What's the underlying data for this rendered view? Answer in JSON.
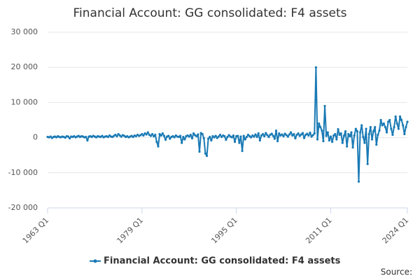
{
  "chart_data": {
    "type": "line",
    "title": "Financial Account: GG consolidated: F4 assets",
    "source_label": "Source:",
    "categories": [
      "1963 Q1",
      null,
      null,
      null,
      null,
      null,
      null,
      null,
      null,
      null,
      null,
      null,
      null,
      null,
      null,
      null,
      null,
      null,
      null,
      null,
      null,
      null,
      null,
      null,
      null,
      null,
      null,
      null,
      null,
      null,
      null,
      null,
      null,
      null,
      null,
      null,
      null,
      null,
      null,
      null,
      null,
      null,
      null,
      null,
      null,
      null,
      null,
      null,
      null,
      null,
      null,
      null,
      null,
      null,
      null,
      null,
      null,
      null,
      null,
      null,
      null,
      null,
      null,
      null,
      "1979 Q1",
      null,
      null,
      null,
      null,
      null,
      null,
      null,
      null,
      null,
      null,
      null,
      null,
      null,
      null,
      null,
      null,
      null,
      null,
      null,
      null,
      null,
      null,
      null,
      null,
      null,
      null,
      null,
      null,
      null,
      null,
      null,
      null,
      null,
      null,
      null,
      null,
      null,
      null,
      null,
      null,
      null,
      null,
      null,
      null,
      null,
      null,
      null,
      null,
      null,
      null,
      null,
      null,
      null,
      null,
      null,
      null,
      null,
      null,
      null,
      null,
      null,
      null,
      null,
      "1995 Q1",
      null,
      null,
      null,
      null,
      null,
      null,
      null,
      null,
      null,
      null,
      null,
      null,
      null,
      null,
      null,
      null,
      null,
      null,
      null,
      null,
      null,
      null,
      null,
      null,
      null,
      null,
      null,
      null,
      null,
      null,
      null,
      null,
      null,
      null,
      null,
      null,
      null,
      null,
      null,
      null,
      null,
      null,
      null,
      null,
      null,
      null,
      null,
      null,
      null,
      null,
      null,
      null,
      null,
      null,
      null,
      null,
      null,
      null,
      null,
      null,
      null,
      null,
      null,
      "2011 Q1",
      null,
      null,
      null,
      null,
      null,
      null,
      null,
      null,
      null,
      null,
      null,
      null,
      null,
      null,
      null,
      null,
      null,
      null,
      null,
      null,
      null,
      null,
      null,
      null,
      null,
      null,
      null,
      null,
      null,
      null,
      null,
      null,
      null,
      null,
      null,
      null,
      null,
      null,
      null,
      null,
      null,
      null,
      null,
      null,
      null,
      null,
      null,
      null,
      null,
      null,
      null,
      "2024 Q1"
    ],
    "series": [
      {
        "name": "Financial Account: GG consolidated: F4 assets",
        "color": "#1a7ab5",
        "values": [
          200,
          100,
          300,
          -100,
          200,
          300,
          100,
          400,
          200,
          100,
          300,
          200,
          0,
          400,
          300,
          -200,
          300,
          200,
          400,
          100,
          300,
          500,
          200,
          400,
          300,
          100,
          200,
          -800,
          300,
          400,
          200,
          500,
          300,
          100,
          400,
          300,
          200,
          500,
          100,
          300,
          400,
          200,
          600,
          300,
          200,
          500,
          800,
          400,
          1000,
          600,
          300,
          700,
          500,
          200,
          400,
          100,
          300,
          500,
          200,
          600,
          400,
          800,
          500,
          700,
          1000,
          600,
          1200,
          900,
          1500,
          800,
          500,
          1000,
          400,
          800,
          -1200,
          -2500,
          1000,
          600,
          1200,
          500,
          -600,
          300,
          500,
          -300,
          200,
          400,
          100,
          600,
          300,
          200,
          500,
          -1500,
          200,
          -500,
          400,
          600,
          300,
          800,
          -200,
          1200,
          700,
          400,
          900,
          -4000,
          1300,
          1000,
          -200,
          -4500,
          -5200,
          -300,
          200,
          -800,
          400,
          100,
          500,
          -100,
          300,
          800,
          200,
          600,
          400,
          -600,
          200,
          700,
          300,
          100,
          600,
          -1200,
          400,
          500,
          -1500,
          300,
          -3800,
          500,
          -500,
          200,
          800,
          400,
          100,
          600,
          300,
          900,
          200,
          1200,
          -800,
          600,
          1000,
          400,
          1300,
          700,
          200,
          800,
          1100,
          500,
          -300,
          2000,
          -1000,
          1200,
          600,
          900,
          400,
          1100,
          700,
          300,
          900,
          1500,
          600,
          1000,
          -200,
          800,
          1200,
          500,
          900,
          1300,
          -100,
          800,
          1100,
          600,
          1400,
          300,
          700,
          1200,
          20000,
          -500,
          4000,
          3000,
          2000,
          -1000,
          9000,
          500,
          1500,
          -800,
          300,
          -1200,
          600,
          1000,
          -500,
          2400,
          800,
          1200,
          -1500,
          500,
          1800,
          -2500,
          1000,
          400,
          1500,
          -2800,
          600,
          2500,
          1800,
          -12500,
          1500,
          3500,
          200,
          -1500,
          2500,
          -7500,
          1000,
          3000,
          -500,
          1800,
          3000,
          -2000,
          800,
          2000,
          5000,
          3500,
          4000,
          3000,
          1500,
          4500,
          5000,
          2500,
          800,
          3000,
          6000,
          4000,
          2500,
          6000,
          5000,
          3500,
          1000,
          3000,
          4500
        ]
      }
    ],
    "ylim": [
      -20000,
      30000
    ],
    "yticks": [
      {
        "value": -20000,
        "label": "-20 000"
      },
      {
        "value": -10000,
        "label": "-10 000"
      },
      0,
      {
        "value": 10000,
        "label": "10 000"
      },
      {
        "value": 20000,
        "label": "20 000"
      },
      {
        "value": 30000,
        "label": "30 000"
      }
    ],
    "grid": true,
    "legend": "bottom"
  }
}
